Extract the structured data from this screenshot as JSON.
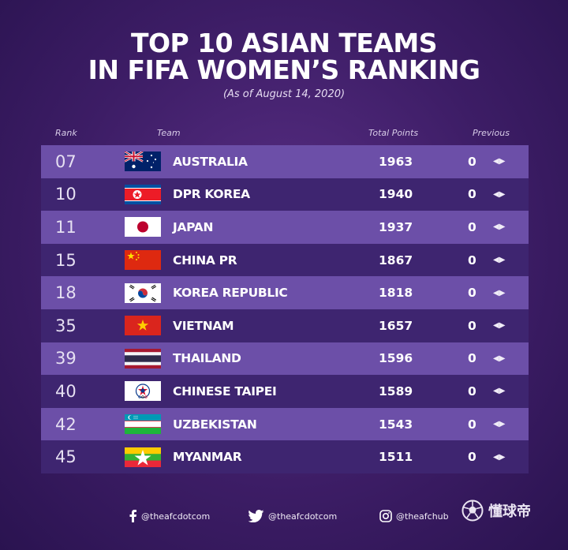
{
  "header": {
    "title_line1": "TOP 10 ASIAN TEAMS",
    "title_line2": "IN FIFA WOMEN’S  RANKING",
    "subtitle": "(As of August 14, 2020)"
  },
  "columns": {
    "rank": "Rank",
    "team": "Team",
    "points": "Total Points",
    "previous": "Previous"
  },
  "rows": [
    {
      "rank": "07",
      "team": "AUSTRALIA",
      "points": "1963",
      "previous": "0",
      "flag": "australia-flag-icon"
    },
    {
      "rank": "10",
      "team": "DPR KOREA",
      "points": "1940",
      "previous": "0",
      "flag": "north-korea-flag-icon"
    },
    {
      "rank": "11",
      "team": "JAPAN",
      "points": "1937",
      "previous": "0",
      "flag": "japan-flag-icon"
    },
    {
      "rank": "15",
      "team": "CHINA PR",
      "points": "1867",
      "previous": "0",
      "flag": "china-flag-icon"
    },
    {
      "rank": "18",
      "team": "KOREA REPUBLIC",
      "points": "1818",
      "previous": "0",
      "flag": "south-korea-flag-icon"
    },
    {
      "rank": "35",
      "team": "VIETNAM",
      "points": "1657",
      "previous": "0",
      "flag": "vietnam-flag-icon"
    },
    {
      "rank": "39",
      "team": "THAILAND",
      "points": "1596",
      "previous": "0",
      "flag": "thailand-flag-icon"
    },
    {
      "rank": "40",
      "team": "CHINESE TAIPEI",
      "points": "1589",
      "previous": "0",
      "flag": "chinese-taipei-flag-icon"
    },
    {
      "rank": "42",
      "team": "UZBEKISTAN",
      "points": "1543",
      "previous": "0",
      "flag": "uzbekistan-flag-icon"
    },
    {
      "rank": "45",
      "team": "MYANMAR",
      "points": "1511",
      "previous": "0",
      "flag": "myanmar-flag-icon"
    }
  ],
  "arrows": "◀▶",
  "footer": {
    "facebook": "@theafcdotcom",
    "twitter": "@theafcdotcom",
    "instagram": "@theafchub"
  },
  "watermark": "懂球帝",
  "colors": {
    "row_light": "#6c4fa8",
    "row_dark": "#3e2570",
    "background": "#3d1d66"
  }
}
